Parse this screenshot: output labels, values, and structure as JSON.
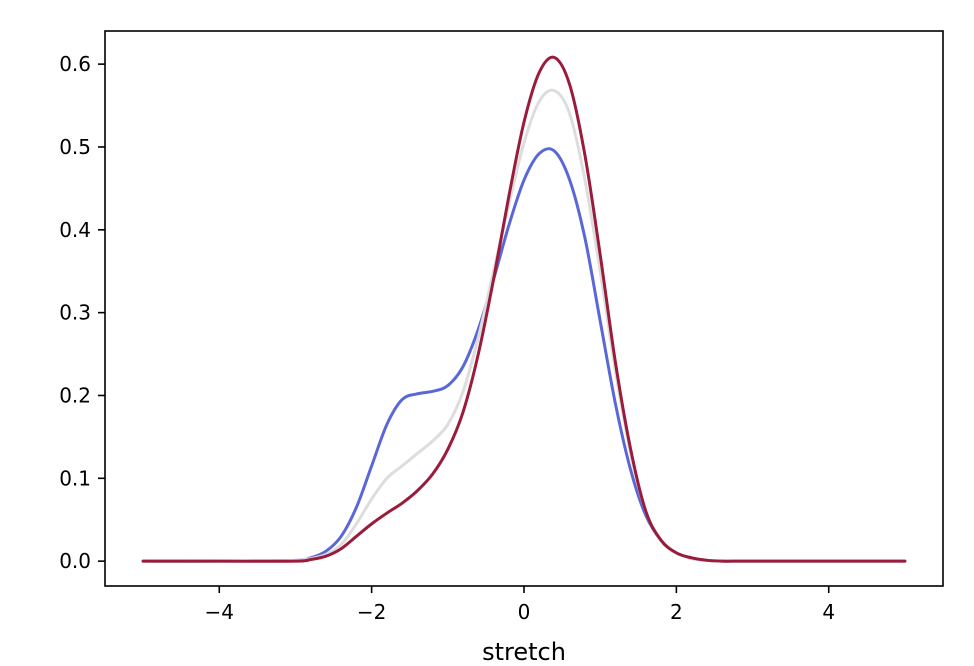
{
  "chart_data": {
    "type": "line",
    "title": "",
    "xlabel": "stretch",
    "ylabel": "",
    "xlim": [
      -5.5,
      5.5
    ],
    "ylim": [
      -0.03,
      0.64
    ],
    "xticks": [
      -4,
      -2,
      0,
      2,
      4
    ],
    "xtick_labels": [
      "−4",
      "−2",
      "0",
      "2",
      "4"
    ],
    "yticks": [
      0.0,
      0.1,
      0.2,
      0.3,
      0.4,
      0.5,
      0.6
    ],
    "ytick_labels": [
      "0.0",
      "0.1",
      "0.2",
      "0.3",
      "0.4",
      "0.5",
      "0.6"
    ],
    "grid": false,
    "legend": "none",
    "x": [
      -5.0,
      -4.0,
      -3.0,
      -2.8,
      -2.6,
      -2.4,
      -2.2,
      -2.0,
      -1.8,
      -1.6,
      -1.4,
      -1.2,
      -1.0,
      -0.8,
      -0.6,
      -0.4,
      -0.2,
      0.0,
      0.2,
      0.4,
      0.6,
      0.8,
      1.0,
      1.2,
      1.4,
      1.6,
      1.8,
      2.0,
      2.2,
      2.4,
      2.6,
      2.8,
      3.0,
      4.0,
      5.0
    ],
    "series": [
      {
        "color": "#5a67d8",
        "values": [
          0.0,
          0.0,
          0.001,
          0.004,
          0.012,
          0.03,
          0.065,
          0.115,
          0.165,
          0.195,
          0.202,
          0.205,
          0.212,
          0.235,
          0.28,
          0.34,
          0.405,
          0.46,
          0.492,
          0.495,
          0.46,
          0.39,
          0.29,
          0.19,
          0.11,
          0.055,
          0.025,
          0.01,
          0.004,
          0.001,
          0.0,
          0.0,
          0.0,
          0.0,
          0.0
        ]
      },
      {
        "color": "#dddddd",
        "values": [
          0.0,
          0.0,
          0.001,
          0.003,
          0.008,
          0.02,
          0.045,
          0.075,
          0.1,
          0.115,
          0.13,
          0.145,
          0.165,
          0.205,
          0.27,
          0.35,
          0.43,
          0.505,
          0.555,
          0.568,
          0.54,
          0.46,
          0.35,
          0.23,
          0.13,
          0.06,
          0.025,
          0.01,
          0.003,
          0.001,
          0.0,
          0.0,
          0.0,
          0.0,
          0.0
        ]
      },
      {
        "color": "#9b1c3a",
        "values": [
          0.0,
          0.0,
          0.0,
          0.002,
          0.006,
          0.015,
          0.03,
          0.045,
          0.058,
          0.07,
          0.085,
          0.105,
          0.135,
          0.18,
          0.25,
          0.34,
          0.44,
          0.53,
          0.59,
          0.608,
          0.575,
          0.49,
          0.37,
          0.24,
          0.135,
          0.06,
          0.025,
          0.01,
          0.004,
          0.001,
          0.0,
          0.0,
          0.0,
          0.0,
          0.0
        ]
      }
    ]
  }
}
